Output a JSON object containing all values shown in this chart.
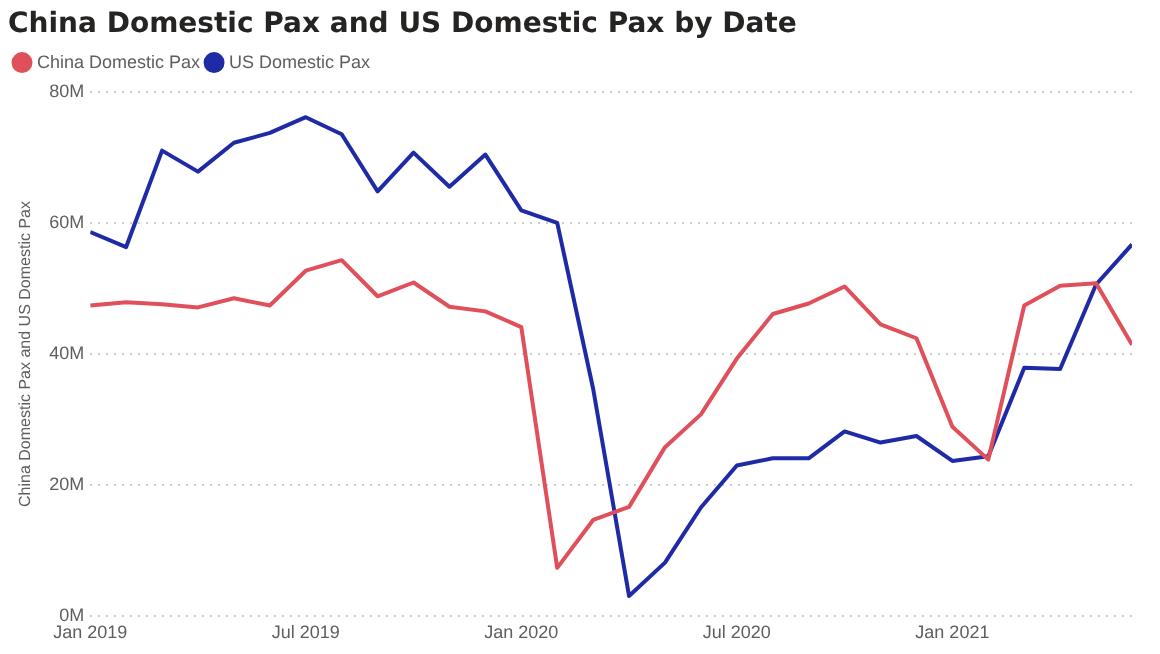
{
  "chart_data": {
    "type": "line",
    "title": "China Domestic Pax and US Domestic Pax by Date",
    "ylabel": "China Domestic Pax and US Domestic Pax",
    "x": [
      "2019-01",
      "2019-02",
      "2019-03",
      "2019-04",
      "2019-05",
      "2019-06",
      "2019-07",
      "2019-08",
      "2019-09",
      "2019-10",
      "2019-11",
      "2019-12",
      "2020-01",
      "2020-02",
      "2020-03",
      "2020-04",
      "2020-05",
      "2020-06",
      "2020-07",
      "2020-08",
      "2020-09",
      "2020-10",
      "2020-11",
      "2020-12",
      "2021-01",
      "2021-02",
      "2021-03",
      "2021-04",
      "2021-05",
      "2021-06"
    ],
    "series": [
      {
        "name": "China Domestic Pax",
        "color": "#e0505a",
        "values": [
          47.4,
          47.9,
          47.6,
          47.1,
          48.5,
          47.4,
          52.7,
          54.3,
          48.8,
          50.9,
          47.2,
          46.5,
          44.1,
          7.4,
          14.7,
          16.7,
          25.8,
          30.8,
          39.3,
          46.1,
          47.7,
          50.3,
          44.5,
          42.4,
          28.9,
          23.9,
          47.4,
          50.4,
          50.8,
          41.4
        ]
      },
      {
        "name": "US Domestic Pax",
        "color": "#1f2aa6",
        "values": [
          58.6,
          56.3,
          71.0,
          67.8,
          72.2,
          73.7,
          76.1,
          73.5,
          64.8,
          70.7,
          65.5,
          70.4,
          61.9,
          60.0,
          34.7,
          3.1,
          8.2,
          16.6,
          23.0,
          24.1,
          24.1,
          28.2,
          26.5,
          27.5,
          23.7,
          24.4,
          37.9,
          37.7,
          50.6,
          56.7
        ]
      }
    ],
    "xlim": [
      "2019-01",
      "2021-06"
    ],
    "xticks": [
      {
        "value": "2019-01",
        "label": "Jan 2019"
      },
      {
        "value": "2019-07",
        "label": "Jul 2019"
      },
      {
        "value": "2020-01",
        "label": "Jan 2020"
      },
      {
        "value": "2020-07",
        "label": "Jul 2020"
      },
      {
        "value": "2021-01",
        "label": "Jan 2021"
      }
    ],
    "ylim": [
      0,
      80
    ],
    "yticks": [
      {
        "value": 0,
        "label": "0M"
      },
      {
        "value": 20,
        "label": "20M"
      },
      {
        "value": 40,
        "label": "40M"
      },
      {
        "value": 60,
        "label": "60M"
      },
      {
        "value": 80,
        "label": "80M"
      }
    ],
    "grid": "y",
    "legend": "top left",
    "marker": "none",
    "line_style": "solid"
  }
}
